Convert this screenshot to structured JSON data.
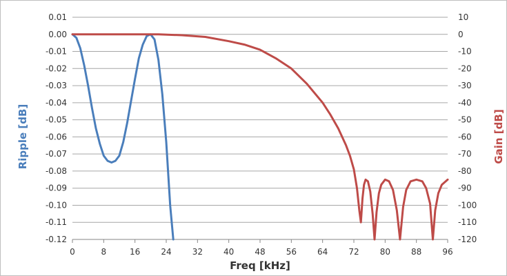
{
  "chart_data": {
    "type": "line",
    "title": "",
    "xlabel": "Freq [kHz]",
    "ylabel_left": "Ripple [dB]",
    "ylabel_right": "Gain [dB]",
    "xlim": [
      0,
      96
    ],
    "ylim_left": [
      -0.12,
      0.01
    ],
    "ylim_right": [
      -120,
      10
    ],
    "x_ticks": [
      "0",
      "8",
      "16",
      "24",
      "32",
      "40",
      "48",
      "56",
      "64",
      "72",
      "80",
      "88",
      "96"
    ],
    "y_ticks_left": [
      "0.01",
      "0.00",
      "-0.01",
      "-0.02",
      "-0.03",
      "-0.04",
      "-0.05",
      "-0.06",
      "-0.07",
      "-0.08",
      "-0.09",
      "-0.10",
      "-0.11",
      "-0.12"
    ],
    "y_ticks_right": [
      "10",
      "0",
      "-10",
      "-20",
      "-30",
      "-40",
      "-50",
      "-60",
      "-70",
      "-80",
      "-90",
      "-100",
      "-110",
      "-120"
    ],
    "grid": true,
    "legend": "none",
    "colors": {
      "ripple": "#4a7ebb",
      "gain": "#be4b48",
      "left_title": "#4a7ebb",
      "right_title": "#be4b48"
    },
    "series": [
      {
        "axis": "left",
        "x": [
          0,
          1,
          2,
          3,
          4,
          5,
          6,
          7,
          8,
          9,
          10,
          11,
          12,
          13,
          14,
          15,
          16,
          17,
          18,
          19,
          20,
          21,
          22,
          23,
          24,
          25,
          25.8
        ],
        "y": [
          0.0,
          -0.002,
          -0.008,
          -0.018,
          -0.03,
          -0.043,
          -0.055,
          -0.064,
          -0.071,
          -0.074,
          -0.075,
          -0.074,
          -0.071,
          -0.063,
          -0.052,
          -0.039,
          -0.026,
          -0.014,
          -0.006,
          -0.001,
          0.0,
          -0.003,
          -0.015,
          -0.035,
          -0.063,
          -0.1,
          -0.12
        ]
      },
      {
        "axis": "right",
        "x": [
          0,
          8,
          16,
          22,
          28,
          34,
          40,
          44,
          48,
          52,
          56,
          60,
          64,
          66,
          68,
          70,
          71,
          72,
          72.8,
          73.4,
          73.8,
          74.2,
          74.6,
          75,
          75.6,
          76.2,
          76.8,
          77.3,
          77.8,
          78.4,
          79,
          80,
          81,
          82,
          83,
          83.8,
          84.6,
          85.4,
          86.5,
          88,
          89.5,
          90.5,
          91.5,
          92.2,
          92.8,
          93.6,
          94.5,
          95.5,
          96
        ],
        "y": [
          0,
          0,
          0,
          0,
          -0.5,
          -1.5,
          -4,
          -6,
          -9,
          -14,
          -20,
          -29,
          -40,
          -47,
          -55,
          -65,
          -71,
          -79,
          -90,
          -103,
          -110,
          -96,
          -88,
          -85,
          -86,
          -92,
          -105,
          -120,
          -104,
          -93,
          -88,
          -85,
          -86,
          -91,
          -103,
          -120,
          -101,
          -91,
          -86,
          -85,
          -86,
          -90,
          -99,
          -120,
          -103,
          -93,
          -88,
          -86,
          -85
        ]
      }
    ]
  }
}
